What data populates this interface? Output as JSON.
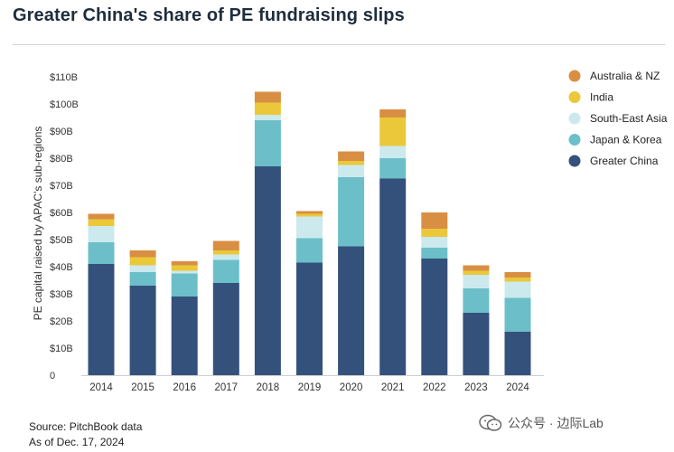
{
  "title": "Greater China's share of PE fundraising slips",
  "source": {
    "line1": "Source: PitchBook data",
    "line2": "As of Dec. 17, 2024"
  },
  "watermark": "公众号 · 边际Lab",
  "chart_data": {
    "type": "bar",
    "stacked": true,
    "ylabel": "PE capital raised by APAC's sub-regions",
    "ylim": [
      0,
      110
    ],
    "yticks": [
      0,
      10,
      20,
      30,
      40,
      50,
      60,
      70,
      80,
      90,
      100,
      110
    ],
    "ytick_labels": [
      "0",
      "$10B",
      "$20B",
      "$30B",
      "$40B",
      "$50B",
      "$60B",
      "$70B",
      "$80B",
      "$90B",
      "$100B",
      "$110B"
    ],
    "categories": [
      "2014",
      "2015",
      "2016",
      "2017",
      "2018",
      "2019",
      "2020",
      "2021",
      "2022",
      "2023",
      "2024"
    ],
    "grid": false,
    "legend_position": "top-right",
    "series": [
      {
        "name": "Greater China",
        "color": "#34517c",
        "values": [
          41,
          33,
          29,
          34,
          77,
          41.5,
          47.5,
          72.5,
          43,
          23,
          16
        ]
      },
      {
        "name": "Japan & Korea",
        "color": "#6cbfc8",
        "values": [
          8,
          5,
          8.5,
          8.5,
          17,
          9,
          25.5,
          7.5,
          4,
          9,
          12.5
        ]
      },
      {
        "name": "South-East Asia",
        "color": "#cce9ee",
        "values": [
          6,
          2.5,
          1,
          2,
          2,
          8,
          4.5,
          4.5,
          4,
          5,
          6
        ]
      },
      {
        "name": "India",
        "color": "#ebc83a",
        "values": [
          2.5,
          3,
          2,
          1.5,
          4.5,
          1,
          1.5,
          10.5,
          3,
          1.5,
          1.5
        ]
      },
      {
        "name": "Australia & NZ",
        "color": "#d98f43",
        "values": [
          2,
          2.5,
          1.5,
          3.5,
          4,
          1,
          3.5,
          3,
          6,
          2,
          2
        ]
      }
    ]
  }
}
